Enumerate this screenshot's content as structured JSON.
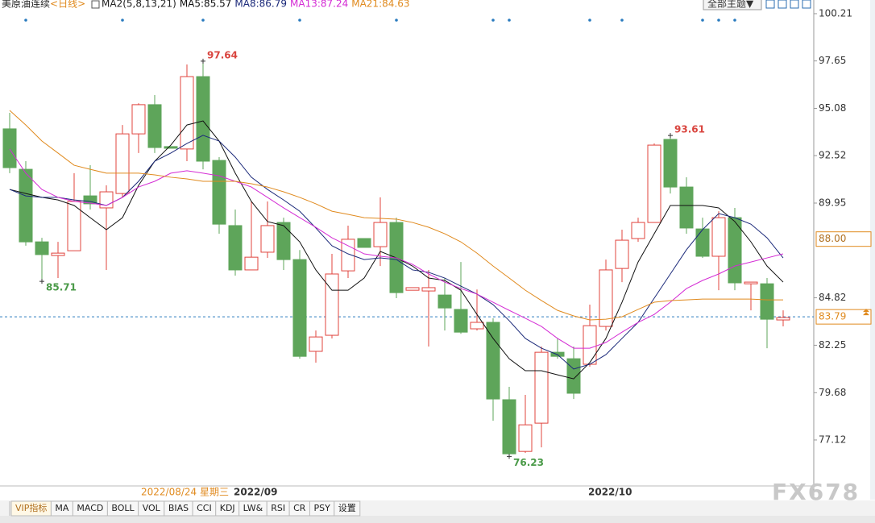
{
  "chart_data": {
    "type": "candlestick",
    "title": "美原油连续",
    "period": "<日线>",
    "indicator": "MA2(5,8,13,21)",
    "categories": [
      null,
      null,
      null,
      null,
      null,
      null,
      null,
      null,
      null,
      null,
      null,
      null,
      null,
      null,
      "2022/09",
      null,
      null,
      null,
      null,
      null,
      null,
      null,
      null,
      null,
      null,
      null,
      null,
      null,
      null,
      null,
      null,
      null,
      null,
      null,
      null,
      null,
      "2022/10",
      null,
      null,
      null,
      null,
      null,
      null,
      null,
      null,
      null,
      null,
      null,
      null
    ],
    "crosshair_date": "2022/08/24 星期三",
    "open": [
      93.97,
      91.78,
      87.85,
      87.11,
      87.37,
      90.34,
      89.69,
      90.47,
      93.7,
      95.28,
      93.01,
      92.88,
      96.8,
      92.26,
      88.73,
      86.33,
      87.29,
      88.9,
      86.89,
      81.92,
      82.79,
      86.28,
      88.03,
      87.59,
      88.9,
      85.23,
      85.19,
      84.97,
      84.19,
      83.14,
      83.49,
      79.3,
      76.5,
      78.03,
      81.87,
      81.52,
      81.22,
      83.27,
      86.41,
      88.03,
      88.9,
      93.4,
      90.82,
      88.55,
      87.07,
      89.16,
      85.58,
      85.58,
      83.62
    ],
    "high": [
      94.84,
      92.22,
      88.07,
      87.85,
      91.57,
      92.0,
      90.91,
      94.18,
      95.36,
      95.8,
      93.01,
      97.46,
      97.64,
      92.44,
      89.6,
      90.04,
      90.04,
      89.16,
      87.41,
      83.05,
      87.2,
      88.73,
      88.03,
      90.26,
      89.16,
      85.37,
      86.33,
      85.89,
      86.76,
      85.27,
      83.71,
      80.0,
      79.56,
      82.18,
      82.62,
      82.18,
      84.45,
      86.89,
      88.51,
      89.16,
      93.18,
      93.61,
      91.35,
      89.16,
      89.51,
      89.69,
      85.67,
      85.89,
      84.14
    ],
    "low": [
      91.57,
      87.64,
      85.71,
      85.89,
      87.37,
      89.6,
      86.33,
      90.26,
      92.66,
      92.66,
      92.92,
      92.22,
      91.78,
      88.29,
      86.02,
      86.33,
      86.98,
      86.33,
      81.52,
      81.31,
      82.62,
      85.89,
      87.55,
      86.54,
      84.8,
      85.23,
      82.18,
      83.05,
      82.87,
      83.05,
      78.16,
      76.23,
      76.42,
      76.72,
      81.52,
      79.34,
      81.09,
      83.05,
      85.67,
      87.85,
      88.9,
      90.47,
      88.29,
      86.98,
      85.23,
      85.23,
      84.14,
      82.09,
      83.27
    ],
    "close": [
      91.87,
      87.85,
      87.16,
      87.24,
      90.04,
      89.91,
      90.56,
      93.7,
      95.28,
      92.96,
      92.92,
      96.8,
      92.22,
      88.81,
      86.33,
      87.02,
      88.73,
      86.89,
      81.65,
      82.7,
      86.11,
      87.99,
      87.55,
      88.9,
      85.1,
      85.37,
      85.37,
      84.27,
      82.96,
      83.49,
      79.34,
      76.37,
      77.94,
      81.87,
      81.65,
      79.65,
      83.31,
      86.33,
      87.94,
      88.9,
      93.09,
      90.82,
      88.6,
      87.07,
      89.16,
      85.63,
      85.67,
      83.66,
      83.75
    ],
    "up_color": "#e0443e",
    "down_color": "#5ea55a",
    "series": [
      {
        "name": "MA5:85.57",
        "color": "#111111",
        "values": [
          90.69,
          90.47,
          90.26,
          90.12,
          89.82,
          89.16,
          88.51,
          89.16,
          90.91,
          92.22,
          93.09,
          94.18,
          94.4,
          93.31,
          91.57,
          90.04,
          88.95,
          88.73,
          87.85,
          86.33,
          85.23,
          85.23,
          85.89,
          87.33,
          86.98,
          86.54,
          85.89,
          85.76,
          85.23,
          83.92,
          82.62,
          81.52,
          80.87,
          80.87,
          80.65,
          80.43,
          81.31,
          82.62,
          84.58,
          86.76,
          88.29,
          89.82,
          89.82,
          89.82,
          89.69,
          88.95,
          87.85,
          86.54,
          85.67
        ]
      },
      {
        "name": "MA8:86.79",
        "color": "#1c2a7a",
        "values": [
          90.69,
          90.34,
          90.26,
          90.26,
          90.12,
          90.04,
          89.82,
          90.26,
          91.13,
          92.22,
          92.66,
          93.18,
          93.62,
          93.31,
          92.44,
          91.35,
          90.69,
          90.12,
          89.51,
          88.6,
          87.64,
          87.2,
          86.89,
          86.98,
          86.89,
          86.33,
          86.2,
          85.89,
          85.45,
          85.02,
          84.45,
          83.58,
          82.62,
          82.09,
          81.74,
          80.96,
          81.22,
          81.74,
          82.62,
          83.49,
          84.8,
          86.11,
          87.42,
          88.51,
          89.38,
          89.16,
          88.81,
          88.07,
          86.98
        ]
      },
      {
        "name": "MA13:87.24",
        "color": "#d42bd4",
        "values": [
          92.88,
          91.57,
          90.69,
          90.26,
          90.04,
          89.95,
          89.82,
          90.26,
          90.82,
          91.13,
          91.57,
          91.7,
          91.57,
          91.43,
          91.13,
          90.82,
          90.26,
          89.69,
          89.16,
          88.64,
          88.07,
          87.64,
          87.2,
          87.07,
          86.98,
          86.63,
          86.11,
          85.67,
          85.32,
          85.02,
          84.58,
          84.14,
          83.71,
          83.27,
          82.62,
          82.09,
          82.09,
          82.4,
          82.96,
          83.49,
          83.92,
          84.58,
          85.32,
          85.76,
          86.11,
          86.54,
          86.76,
          86.98,
          87.2
        ]
      },
      {
        "name": "MA21:84.63",
        "color": "#e08a1e",
        "values": [
          94.97,
          94.18,
          93.31,
          92.66,
          92.0,
          91.78,
          91.57,
          91.57,
          91.57,
          91.48,
          91.35,
          91.26,
          91.13,
          91.13,
          91.13,
          91.0,
          90.82,
          90.56,
          90.26,
          89.91,
          89.51,
          89.34,
          89.16,
          89.12,
          89.08,
          88.9,
          88.64,
          88.29,
          87.85,
          87.24,
          86.54,
          85.89,
          85.23,
          84.67,
          84.14,
          83.84,
          83.62,
          83.66,
          83.79,
          84.19,
          84.58,
          84.67,
          84.71,
          84.75,
          84.75,
          84.75,
          84.75,
          84.71,
          84.71
        ]
      }
    ],
    "ylim": [
      74.63,
      100.95
    ],
    "yticks": [
      100.21,
      97.65,
      95.08,
      92.52,
      89.95,
      84.82,
      82.25,
      79.68,
      77.12
    ],
    "crosshair_price": {
      "value": 88,
      "label": "88.00"
    },
    "last_price": 83.79,
    "high_marks": [
      97.64,
      93.61
    ],
    "low_marks": [
      85.71,
      76.23
    ]
  },
  "toolbar": {
    "theme": "全部主题▼"
  },
  "tabs": [
    "VIP指标",
    "MA",
    "MACD",
    "BOLL",
    "VOL",
    "BIAS",
    "CCI",
    "KDJ",
    "LW&",
    "RSI",
    "CR",
    "PSY",
    "设置"
  ],
  "watermark": "FX678"
}
